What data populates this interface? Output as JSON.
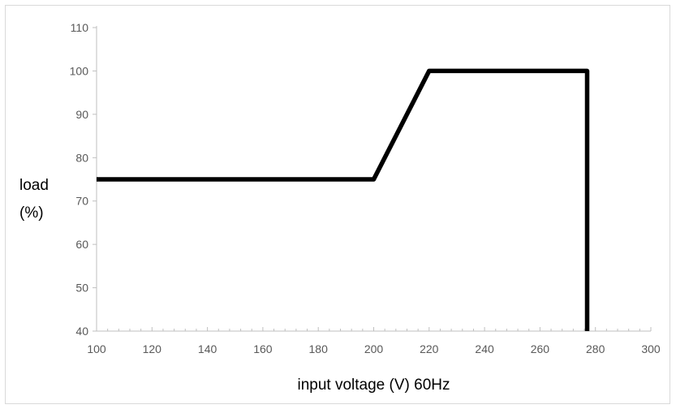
{
  "chart_data": {
    "type": "line",
    "title": "",
    "xlabel": "input voltage (V) 60Hz",
    "ylabel": [
      "load",
      "(%)"
    ],
    "xlim": [
      100,
      300
    ],
    "ylim": [
      40,
      110
    ],
    "x_ticks": [
      100,
      120,
      140,
      160,
      180,
      200,
      220,
      240,
      260,
      280,
      300
    ],
    "y_ticks": [
      40,
      50,
      60,
      70,
      80,
      90,
      100,
      110
    ],
    "grid": false,
    "legend": "none",
    "series": [
      {
        "x": [
          100,
          200,
          220,
          277,
          277
        ],
        "y": [
          75,
          75,
          100,
          100,
          40
        ],
        "color": "#000000"
      }
    ],
    "colors": {
      "axis": "#bfbfbf",
      "tick_label": "#595959",
      "line": "#000000"
    }
  }
}
